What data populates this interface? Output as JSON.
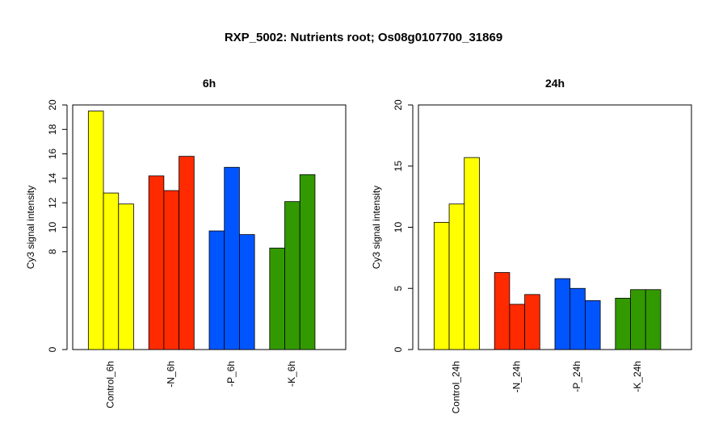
{
  "title": "RXP_5002: Nutrients root; Os08g0107700_31869",
  "colors": {
    "control": "#FFFF00",
    "n": "#FF2A00",
    "p": "#0055FF",
    "k": "#339900"
  },
  "chart_data": [
    {
      "type": "bar",
      "title": "6h",
      "ylabel": "Cy3 signal intensity",
      "xlabel": "",
      "ylim": [
        0,
        20
      ],
      "yticks": [
        0,
        8,
        10,
        12,
        14,
        16,
        18,
        20
      ],
      "grid": false,
      "categories": [
        "Control_6h",
        "-N_6h",
        "-P_6h",
        "-K_6h"
      ],
      "group_colors": [
        "#FFFF00",
        "#FF2A00",
        "#0055FF",
        "#339900"
      ],
      "groups": [
        [
          19.5,
          12.8,
          11.9
        ],
        [
          14.2,
          13.0,
          15.8
        ],
        [
          9.7,
          14.9,
          9.4
        ],
        [
          8.3,
          12.1,
          14.3
        ]
      ]
    },
    {
      "type": "bar",
      "title": "24h",
      "ylabel": "Cy3 signal intensity",
      "xlabel": "",
      "ylim": [
        0,
        20
      ],
      "yticks": [
        0,
        5,
        10,
        15,
        20
      ],
      "grid": false,
      "categories": [
        "Control_24h",
        "-N_24h",
        "-P_24h",
        "-K_24h"
      ],
      "group_colors": [
        "#FFFF00",
        "#FF2A00",
        "#0055FF",
        "#339900"
      ],
      "groups": [
        [
          10.4,
          11.9,
          15.7
        ],
        [
          6.3,
          3.7,
          4.5
        ],
        [
          5.8,
          5.0,
          4.0
        ],
        [
          4.2,
          4.9,
          4.9
        ]
      ]
    }
  ]
}
